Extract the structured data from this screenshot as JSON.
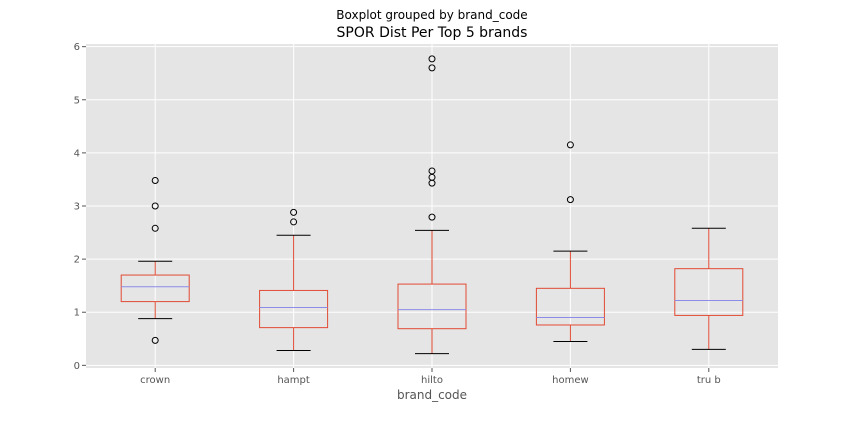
{
  "chart_data": {
    "type": "box",
    "suptitle": "Boxplot grouped by brand_code",
    "title": "SPOR Dist Per Top 5 brands",
    "xlabel": "brand_code",
    "ylabel": "",
    "ylim": [
      -0.05,
      6.05
    ],
    "yticks": [
      "0",
      "1",
      "2",
      "3",
      "4",
      "5",
      "6"
    ],
    "grid": true,
    "categories": [
      "crown",
      "hampt",
      "hilto",
      "homew",
      "tru b"
    ],
    "boxes": [
      {
        "category": "crown",
        "whisker_low": 0.88,
        "q1": 1.2,
        "median": 1.48,
        "q3": 1.7,
        "whisker_high": 1.96,
        "outliers": [
          0.47,
          2.58,
          3.0,
          3.48
        ]
      },
      {
        "category": "hampt",
        "whisker_low": 0.28,
        "q1": 0.71,
        "median": 1.09,
        "q3": 1.41,
        "whisker_high": 2.45,
        "outliers": [
          2.7,
          2.88
        ]
      },
      {
        "category": "hilto",
        "whisker_low": 0.22,
        "q1": 0.69,
        "median": 1.05,
        "q3": 1.53,
        "whisker_high": 2.54,
        "outliers": [
          2.79,
          3.43,
          3.54,
          3.66,
          5.6,
          5.77
        ]
      },
      {
        "category": "homew",
        "whisker_low": 0.45,
        "q1": 0.76,
        "median": 0.9,
        "q3": 1.45,
        "whisker_high": 2.15,
        "outliers": [
          3.12,
          4.15
        ]
      },
      {
        "category": "tru b",
        "whisker_low": 0.3,
        "q1": 0.94,
        "median": 1.22,
        "q3": 1.82,
        "whisker_high": 2.58,
        "outliers": []
      }
    ],
    "colors": {
      "panel_background": "#e5e5e5",
      "grid": "#ffffff",
      "box": "#e24a33",
      "median": "#8c8ce8",
      "whisker_cap": "#000000",
      "outlier_edge": "#000000"
    }
  }
}
